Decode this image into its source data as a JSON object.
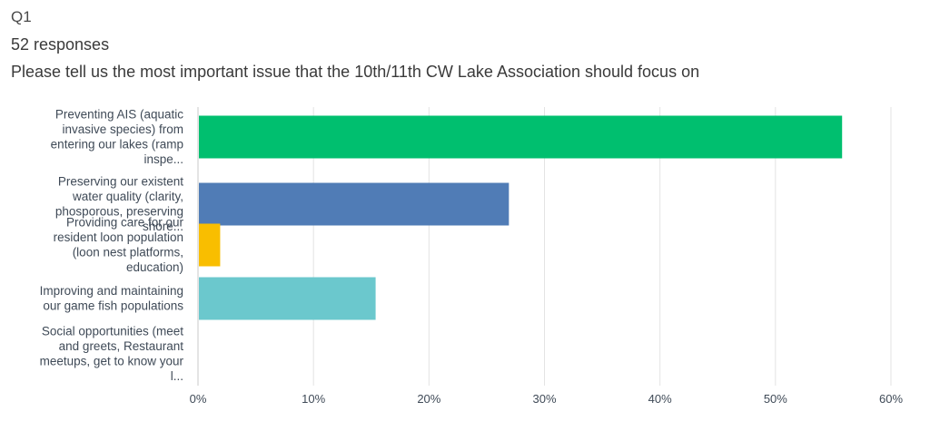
{
  "header": {
    "question_label": "Q1",
    "responses": "52 responses",
    "question_text": "Please tell us the most important issue that the 10th/11th CW Lake Association should focus on"
  },
  "chart_data": {
    "type": "bar",
    "orientation": "horizontal",
    "categories": [
      [
        "Preventing AIS (aquatic",
        "invasive species) from",
        "entering our lakes (ramp",
        "inspe..."
      ],
      [
        "Preserving our existent",
        "water quality (clarity,",
        "phosporous, preserving",
        "shore..."
      ],
      [
        "Providing care for our",
        "resident loon population",
        "(loon nest platforms,",
        "education)"
      ],
      [
        "Improving and maintaining",
        "our game fish populations"
      ],
      [
        "Social opportunities (meet",
        "and greets, Restaurant",
        "meetups, get to know your",
        "l..."
      ]
    ],
    "values": [
      55.77,
      26.92,
      1.92,
      15.38,
      0
    ],
    "colors": [
      "#00bf6f",
      "#507cb6",
      "#f9be00",
      "#6bc8cd",
      "#ff8b4f"
    ],
    "x_ticks": [
      "0%",
      "10%",
      "20%",
      "30%",
      "40%",
      "50%",
      "60%"
    ],
    "xlim": [
      0,
      60
    ],
    "grid": true,
    "title": "",
    "xlabel": "",
    "ylabel": ""
  }
}
